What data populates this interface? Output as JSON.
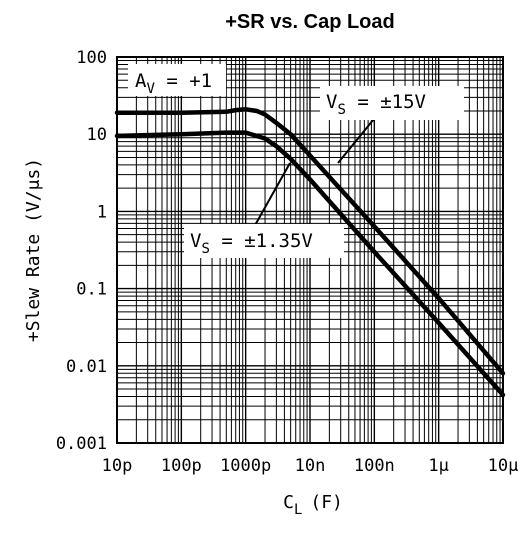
{
  "chart_data": {
    "type": "line",
    "title": "+SR vs. Cap Load",
    "xlabel": {
      "main": "C",
      "sub": "L",
      "unit": "(F)"
    },
    "ylabel": "+Slew Rate (V/μs)",
    "x_scale": "log",
    "y_scale": "log",
    "xlim": [
      1e-11,
      1e-05
    ],
    "ylim": [
      0.001,
      100
    ],
    "grid": true,
    "x_ticks": [
      {
        "value": 1e-11,
        "label": "10p"
      },
      {
        "value": 1e-10,
        "label": "100p"
      },
      {
        "value": 1e-09,
        "label": "1000p"
      },
      {
        "value": 1e-08,
        "label": "10n"
      },
      {
        "value": 1e-07,
        "label": "100n"
      },
      {
        "value": 1e-06,
        "label": "1μ"
      },
      {
        "value": 1e-05,
        "label": "10μ"
      }
    ],
    "y_ticks": [
      {
        "value": 100,
        "label": "100"
      },
      {
        "value": 10,
        "label": "10"
      },
      {
        "value": 1,
        "label": "1"
      },
      {
        "value": 0.1,
        "label": "0.1"
      },
      {
        "value": 0.01,
        "label": "0.01"
      },
      {
        "value": 0.001,
        "label": "0.001"
      }
    ],
    "series": [
      {
        "name": "VS = ±15V",
        "x": [
          1e-11,
          1e-10,
          5e-10,
          7e-10,
          1e-09,
          1.5e-09,
          2e-09,
          3e-09,
          5e-09,
          1e-08,
          2e-08,
          1e-07,
          1e-06,
          1e-05
        ],
        "y": [
          19,
          19,
          19.5,
          20.5,
          21,
          20,
          18,
          14,
          10,
          5.3,
          2.8,
          0.64,
          0.075,
          0.008
        ]
      },
      {
        "name": "VS = ±1.35V",
        "x": [
          1e-11,
          1e-10,
          5e-10,
          1e-09,
          2e-09,
          3e-09,
          5e-09,
          1e-08,
          2e-08,
          1e-07,
          1e-06,
          1e-05
        ],
        "y": [
          9.5,
          10,
          10.5,
          10.5,
          8.8,
          7,
          4.8,
          2.6,
          1.35,
          0.3,
          0.036,
          0.0042
        ]
      }
    ],
    "annotations": [
      {
        "main": "A",
        "sub": "V",
        "rest": " = +1"
      },
      {
        "main": "V",
        "sub": "S",
        "rest": " = ±15V"
      },
      {
        "main": "V",
        "sub": "S",
        "rest": " = ±1.35V"
      }
    ]
  }
}
